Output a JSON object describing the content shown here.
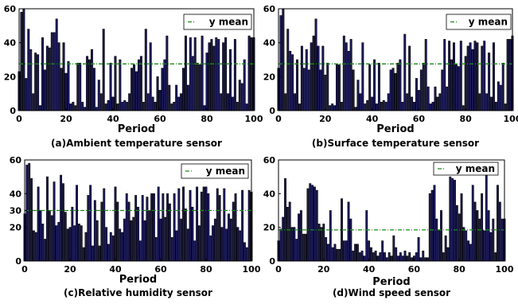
{
  "chart_data": [
    {
      "type": "bar",
      "caption": "(a)Ambient temperature sensor",
      "xlabel": "Period",
      "ylabel": "",
      "xlim": [
        0,
        100
      ],
      "ylim": [
        0,
        60
      ],
      "xticks": [
        "0",
        "20",
        "40",
        "60",
        "80",
        "100"
      ],
      "yticks": [
        "0",
        "20",
        "40",
        "60"
      ],
      "legend": "y mean",
      "legend_position": "top-right",
      "mean": 27.5,
      "colors": {
        "bar": "#1c1a5c",
        "mean": "#1a8a1a"
      },
      "values": [
        23,
        58,
        60,
        19,
        48,
        36,
        10,
        34,
        33,
        3,
        43,
        24,
        38,
        37,
        46,
        46,
        54,
        40,
        25,
        40,
        22,
        29,
        4,
        5,
        3,
        28,
        28,
        5,
        2,
        32,
        30,
        36,
        25,
        2,
        18,
        10,
        48,
        4,
        6,
        28,
        8,
        32,
        4,
        30,
        5,
        6,
        5,
        10,
        25,
        27,
        23,
        30,
        32,
        5,
        48,
        10,
        40,
        8,
        5,
        20,
        12,
        25,
        30,
        44,
        15,
        4,
        5,
        15,
        8,
        10,
        25,
        44,
        15,
        43,
        32,
        43,
        28,
        27,
        44,
        3,
        34,
        40,
        42,
        38,
        43,
        42,
        10,
        40,
        43,
        10,
        36,
        8,
        42,
        5,
        18,
        16,
        30,
        4,
        44,
        43,
        43
      ]
    },
    {
      "type": "bar",
      "caption": "(b)Surface temperature sensor",
      "xlabel": "Period",
      "ylabel": "",
      "xlim": [
        0,
        100
      ],
      "ylim": [
        0,
        60
      ],
      "xticks": [
        "0",
        "20",
        "40",
        "60",
        "80",
        "100"
      ],
      "yticks": [
        "0",
        "20",
        "40",
        "60"
      ],
      "legend": "y mean",
      "legend_position": "top-right",
      "mean": 27.5,
      "colors": {
        "bar": "#1c1a5c",
        "mean": "#1a8a1a"
      },
      "values": [
        25,
        56,
        60,
        10,
        48,
        35,
        33,
        10,
        30,
        4,
        38,
        25,
        36,
        24,
        40,
        44,
        54,
        38,
        24,
        38,
        21,
        28,
        3,
        4,
        3,
        27,
        27,
        5,
        44,
        40,
        35,
        42,
        24,
        2,
        18,
        10,
        40,
        4,
        6,
        27,
        8,
        30,
        4,
        28,
        5,
        6,
        5,
        10,
        24,
        25,
        22,
        28,
        30,
        5,
        45,
        10,
        38,
        8,
        5,
        19,
        12,
        24,
        28,
        42,
        14,
        4,
        5,
        14,
        8,
        10,
        24,
        42,
        14,
        41,
        30,
        40,
        27,
        26,
        41,
        3,
        32,
        38,
        40,
        36,
        41,
        40,
        10,
        38,
        41,
        10,
        34,
        8,
        40,
        5,
        17,
        15,
        28,
        4,
        42,
        42,
        44
      ]
    },
    {
      "type": "bar",
      "caption": "(c)Relative humidity sensor",
      "xlabel": "Period",
      "ylabel": "",
      "xlim": [
        0,
        100
      ],
      "ylim": [
        0,
        60
      ],
      "xticks": [
        "0",
        "20",
        "40",
        "60",
        "80",
        "100"
      ],
      "yticks": [
        "0",
        "20",
        "30",
        "40",
        "60"
      ],
      "legend": "y mean",
      "legend_position": "top-right",
      "mean": 30,
      "colors": {
        "bar": "#1c1a5c",
        "mean": "#1a8a1a"
      },
      "values": [
        28,
        57,
        58,
        49,
        18,
        17,
        44,
        30,
        22,
        13,
        50,
        30,
        27,
        47,
        21,
        23,
        51,
        46,
        29,
        19,
        20,
        32,
        21,
        45,
        22,
        21,
        8,
        17,
        39,
        45,
        9,
        36,
        24,
        9,
        35,
        43,
        20,
        10,
        17,
        15,
        44,
        35,
        19,
        17,
        25,
        40,
        35,
        24,
        26,
        39,
        32,
        12,
        39,
        24,
        38,
        30,
        40,
        40,
        14,
        44,
        25,
        40,
        26,
        40,
        34,
        14,
        40,
        18,
        43,
        25,
        44,
        31,
        19,
        42,
        32,
        12,
        44,
        21,
        41,
        44,
        44,
        40,
        15,
        21,
        25,
        43,
        39,
        20,
        43,
        19,
        28,
        25,
        35,
        40,
        20,
        18,
        42,
        11,
        8,
        42,
        41
      ]
    },
    {
      "type": "bar",
      "caption": "(d)Wind speed sensor",
      "xlabel": "Period",
      "ylabel": "",
      "xlim": [
        0,
        100
      ],
      "ylim": [
        0,
        60
      ],
      "xticks": [
        "0",
        "20",
        "40",
        "60",
        "80",
        "100"
      ],
      "yticks": [
        "0",
        "20",
        "40",
        "60"
      ],
      "legend": "y mean",
      "legend_position": "top-right",
      "mean": 18.5,
      "colors": {
        "bar": "#1c1a5c",
        "mean": "#1a8a1a"
      },
      "values": [
        12,
        19,
        26,
        49,
        32,
        35,
        20,
        20,
        13,
        28,
        30,
        16,
        16,
        43,
        46,
        45,
        44,
        42,
        22,
        20,
        22,
        14,
        10,
        30,
        8,
        10,
        7,
        7,
        37,
        12,
        12,
        35,
        25,
        6,
        10,
        10,
        5,
        6,
        3,
        30,
        12,
        8,
        5,
        6,
        3,
        5,
        12,
        5,
        2,
        5,
        3,
        15,
        8,
        3,
        5,
        3,
        6,
        3,
        5,
        2,
        3,
        5,
        14,
        2,
        6,
        2,
        2,
        40,
        42,
        45,
        25,
        18,
        30,
        5,
        15,
        8,
        50,
        49,
        48,
        33,
        28,
        40,
        20,
        18,
        12,
        10,
        45,
        35,
        30,
        25,
        40,
        18,
        51,
        30,
        17,
        25,
        5,
        45,
        35,
        25,
        25
      ]
    }
  ]
}
